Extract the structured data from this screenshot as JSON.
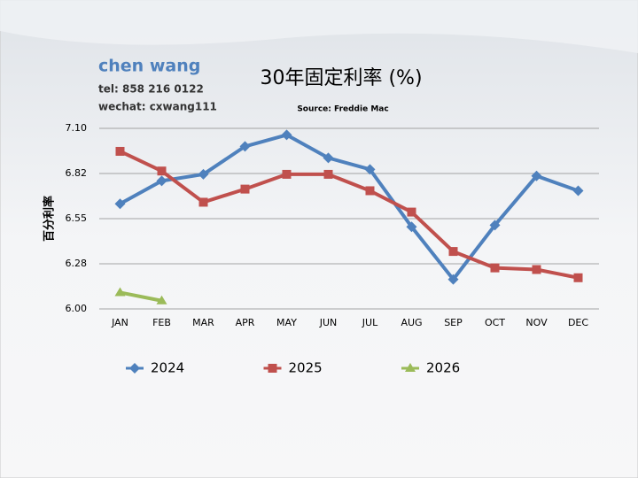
{
  "header": {
    "name": "chen wang",
    "tel": "tel: 858 216 0122",
    "wechat": "wechat: cxwang111"
  },
  "chart_data": {
    "type": "line",
    "title": "30年固定利率 (%)",
    "subtitle": "Source: Freddie Mac",
    "y_label": "百分利率",
    "categories": [
      "JAN",
      "FEB",
      "MAR",
      "APR",
      "MAY",
      "JUN",
      "JUL",
      "AUG",
      "SEP",
      "OCT",
      "NOV",
      "DEC"
    ],
    "series": [
      {
        "name": "2024",
        "color": "#4f81bd",
        "marker": "diamond",
        "values": [
          6.64,
          6.78,
          6.82,
          6.99,
          7.06,
          6.92,
          6.85,
          6.5,
          6.18,
          6.51,
          6.81,
          6.72
        ]
      },
      {
        "name": "2025",
        "color": "#c0504d",
        "marker": "square",
        "values": [
          6.96,
          6.84,
          6.65,
          6.73,
          6.82,
          6.82,
          6.72,
          6.59,
          6.35,
          6.25,
          6.24,
          6.19
        ]
      },
      {
        "name": "2026",
        "color": "#9bbb59",
        "marker": "triangle",
        "values": [
          6.1,
          6.05,
          null,
          null,
          null,
          null,
          null,
          null,
          null,
          null,
          null,
          null
        ]
      }
    ],
    "ylim": [
      6.0,
      7.1
    ],
    "yticks": [
      {
        "value": 6.0,
        "label": "6.00"
      },
      {
        "value": 6.275,
        "label": "6.28"
      },
      {
        "value": 6.55,
        "label": "6.55"
      },
      {
        "value": 6.825,
        "label": "6.82"
      },
      {
        "value": 7.1,
        "label": "7.10"
      }
    ],
    "grid": true,
    "legend": "bottom"
  }
}
